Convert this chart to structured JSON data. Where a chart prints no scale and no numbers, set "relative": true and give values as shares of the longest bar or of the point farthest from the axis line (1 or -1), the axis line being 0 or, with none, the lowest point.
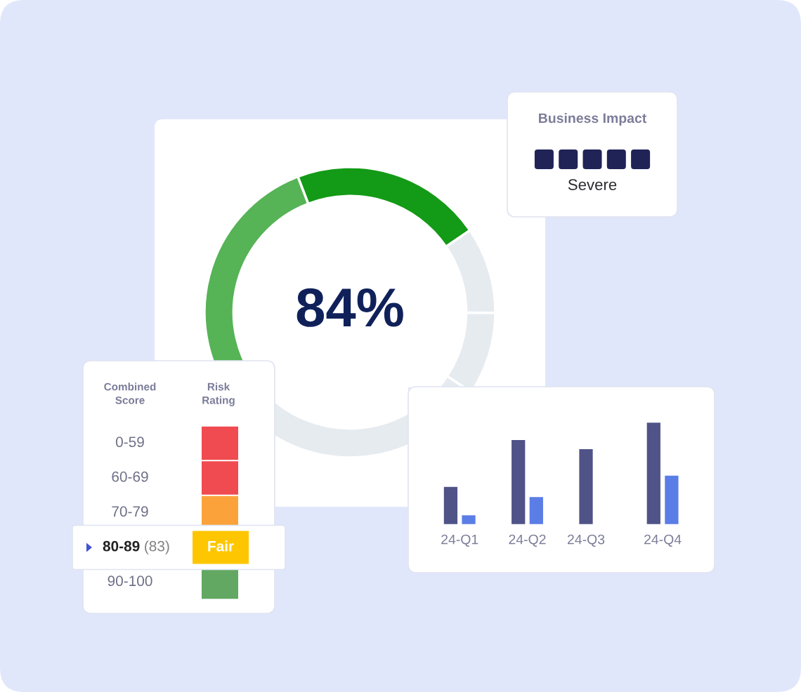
{
  "chart_data": [
    {
      "type": "donut",
      "categories": [
        null,
        null,
        null,
        null,
        null
      ],
      "values": [
        21.3,
        9.6,
        9.2,
        29.6,
        30.3
      ],
      "colors": [
        "#139a16",
        "#e6ebf0",
        "#e6ebf0",
        "#e6ebf0",
        "#56b356"
      ],
      "annotations": [
        "84%"
      ]
    },
    {
      "type": "other",
      "title": "Business Impact",
      "colors": [
        "#1f2356",
        "#1f2356",
        "#1f2356",
        "#1f2356",
        "#1f2356"
      ],
      "annotations": [
        "Severe"
      ]
    },
    {
      "type": "other",
      "categories": [
        "0-59",
        "60-69",
        "70-79",
        "80-89",
        "90-100"
      ],
      "annotations": [
        "Combined Score",
        "Risk Rating",
        {
          "text": "(83)",
          "y": "80-89"
        },
        {
          "text": "Fair",
          "y": "80-89"
        }
      ]
    },
    {
      "type": "bar",
      "relative": true,
      "categories": [
        "24-Q1",
        "24-Q2",
        "24-Q3",
        "24-Q4"
      ],
      "series": [
        {
          "color": "#4f5387",
          "values": [
            0.37,
            0.83,
            0.74,
            1
          ]
        },
        {
          "color": "#5b7de6",
          "values": [
            0.09,
            0.27,
            null,
            0.48
          ]
        }
      ]
    }
  ]
}
